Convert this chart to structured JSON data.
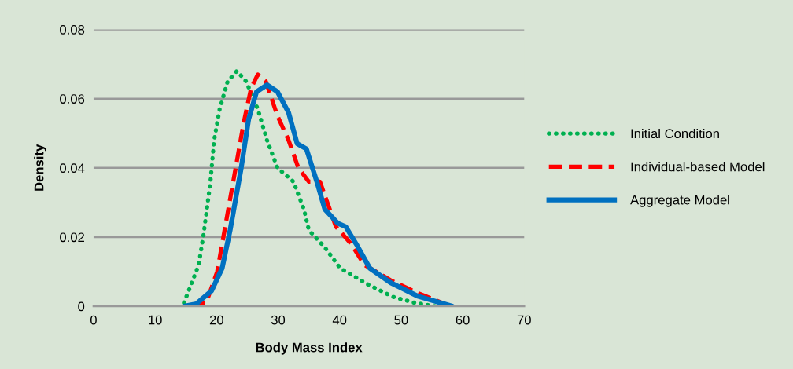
{
  "chart_data": {
    "type": "line",
    "xlabel": "Body Mass Index",
    "ylabel": "Density",
    "xlim": [
      0,
      70
    ],
    "xticks": [
      0,
      10,
      20,
      30,
      40,
      50,
      60,
      70
    ],
    "ylim": [
      0,
      0.08
    ],
    "yticks": [
      0,
      0.02,
      0.04,
      0.06,
      0.08
    ],
    "grid": "y",
    "legend": "right",
    "marker": "none",
    "series": [
      {
        "name": "Initial Condition",
        "color": "#00b050",
        "line_style": "dotted",
        "x": [
          14.7,
          17.1,
          17.9,
          19,
          19.6,
          20.5,
          21.8,
          23.3,
          24.8,
          26.7,
          28.2,
          29.9,
          32.5,
          34.2,
          35,
          37.6,
          40.1,
          44.5,
          48.7,
          52.2,
          55.5
        ],
        "values": [
          0.001,
          0.012,
          0.021,
          0.036,
          0.048,
          0.057,
          0.065,
          0.068,
          0.065,
          0.057,
          0.048,
          0.04,
          0.036,
          0.028,
          0.022,
          0.017,
          0.011,
          0.0064,
          0.0027,
          0.001,
          0
        ]
      },
      {
        "name": "Individual-based Model",
        "color": "#ff0000",
        "line_style": "dashed",
        "x": [
          16,
          18.3,
          20.1,
          21.4,
          23.1,
          24.4,
          25.6,
          26.7,
          28,
          29.9,
          31.7,
          33.3,
          35,
          36.8,
          38,
          39.4,
          41.9,
          44,
          48.3,
          52.6,
          58
        ],
        "values": [
          0,
          0.001,
          0.01,
          0.023,
          0.04,
          0.053,
          0.063,
          0.067,
          0.065,
          0.055,
          0.048,
          0.04,
          0.036,
          0.036,
          0.03,
          0.023,
          0.018,
          0.012,
          0.0075,
          0.0039,
          0
        ]
      },
      {
        "name": "Aggregate Model",
        "color": "#0070c0",
        "line_style": "solid",
        "x": [
          14.7,
          16.7,
          19.2,
          20.9,
          22.2,
          24,
          25.2,
          26.5,
          28.2,
          29.9,
          31.7,
          33.1,
          34.6,
          36.3,
          37.6,
          39.7,
          41,
          42.7,
          44.9,
          48.3,
          52.6,
          58.3
        ],
        "values": [
          0,
          0.0007,
          0.0045,
          0.011,
          0.022,
          0.04,
          0.054,
          0.062,
          0.064,
          0.062,
          0.056,
          0.047,
          0.0455,
          0.036,
          0.028,
          0.024,
          0.023,
          0.018,
          0.011,
          0.0068,
          0.003,
          0
        ]
      }
    ]
  }
}
